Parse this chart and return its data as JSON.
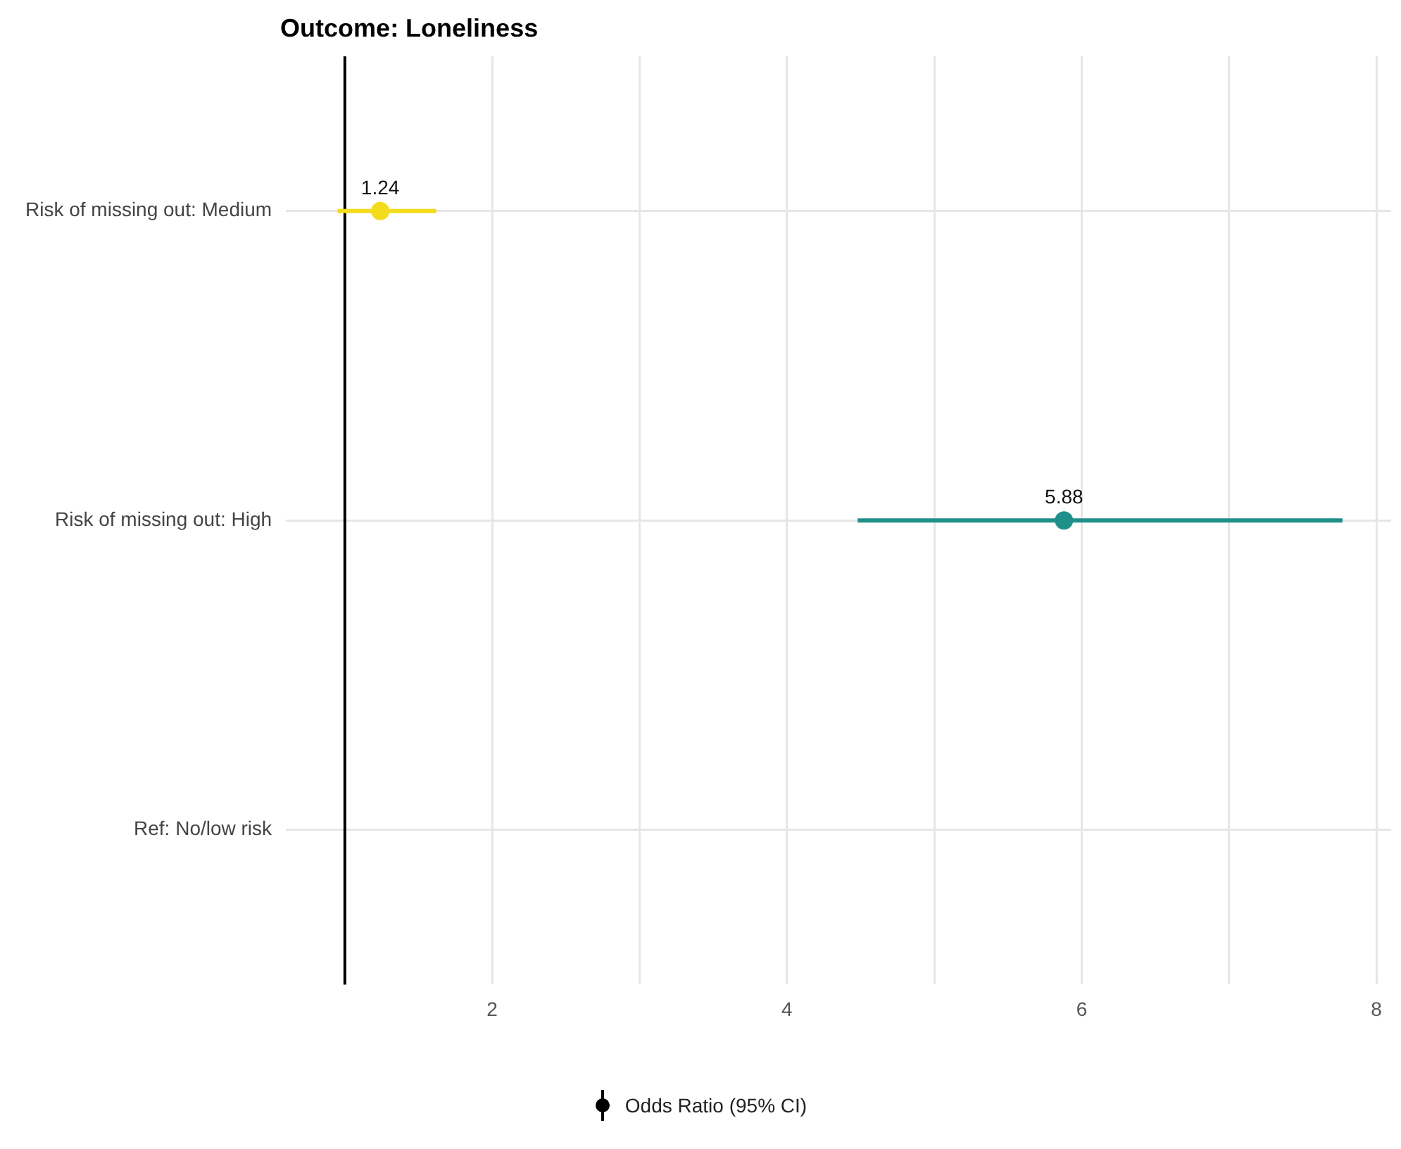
{
  "chart_data": {
    "type": "scatter",
    "title": "Outcome: Loneliness",
    "orientation": "horizontal",
    "categories": [
      "Risk of missing out: Medium",
      "Risk of missing out: High",
      "Ref: No/low risk"
    ],
    "series": [
      {
        "name": "Odds Ratio (95% CI)",
        "color": "#000000",
        "colors": [
          "#f2dc1b",
          "#1f8f8a",
          null
        ],
        "values": [
          1.24,
          5.88,
          null
        ],
        "errors": [
          [
            0.95,
            1.62
          ],
          [
            4.48,
            7.77
          ],
          null
        ]
      }
    ],
    "xlim": [
      0.6,
      8.1
    ],
    "xticks": [
      2,
      {
        "value": 3,
        "label": null
      },
      4,
      {
        "value": 5,
        "label": null
      },
      6,
      {
        "value": 7,
        "label": null
      },
      8
    ],
    "ref_lines": [
      {
        "axis": "x",
        "value": 1,
        "color": "#000000"
      }
    ],
    "grid": true,
    "legend": "bottom",
    "marker": "circle",
    "data_labels": true
  }
}
